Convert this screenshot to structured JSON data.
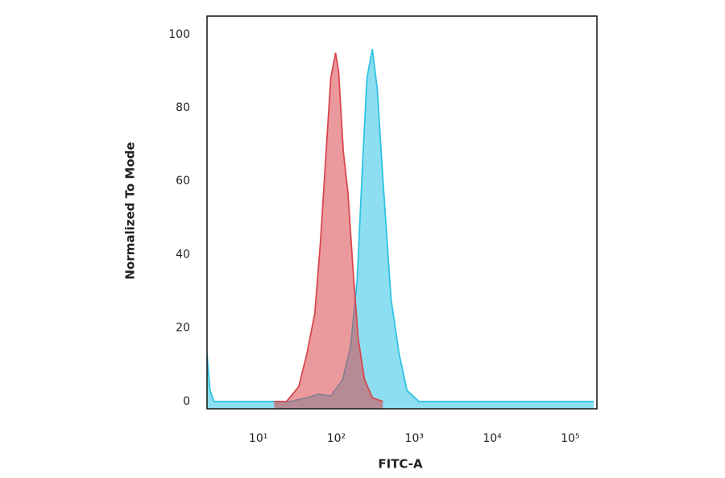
{
  "chart_data": {
    "type": "area",
    "x_label": "FITC-A",
    "y_label": "Normalized To Mode",
    "xscale": "log",
    "xlim": [
      2.2,
      220000
    ],
    "ylim": [
      -2,
      105
    ],
    "xticks": [
      {
        "value": 10,
        "label": "10¹"
      },
      {
        "value": 100,
        "label": "10²"
      },
      {
        "value": 1000,
        "label": "10³"
      },
      {
        "value": 10000,
        "label": "10⁴"
      },
      {
        "value": 100000,
        "label": "10⁵"
      }
    ],
    "yticks": [
      0,
      20,
      40,
      60,
      80,
      100
    ],
    "series": [
      {
        "color": "#d9474c",
        "x": [
          16,
          23,
          33,
          42,
          53,
          63,
          75,
          85,
          98,
          107,
          123,
          141,
          165,
          191,
          230,
          290,
          395
        ],
        "values": [
          0,
          0,
          4,
          13,
          24,
          44,
          70,
          88,
          95,
          90,
          68,
          57,
          35,
          17,
          6,
          1,
          0
        ]
      },
      {
        "color": "#2fc3e3",
        "x": [
          2.2,
          2.4,
          2.7,
          4,
          16,
          26,
          42,
          59,
          85,
          121,
          153,
          185,
          219,
          247,
          290,
          336,
          395,
          504,
          638,
          806,
          1150,
          3800,
          200000
        ],
        "values": [
          13,
          3,
          0,
          0,
          0,
          0,
          1,
          2,
          1.5,
          6,
          15,
          33,
          66,
          88,
          96,
          85,
          61,
          28,
          13,
          3,
          0,
          0,
          0
        ]
      }
    ]
  }
}
